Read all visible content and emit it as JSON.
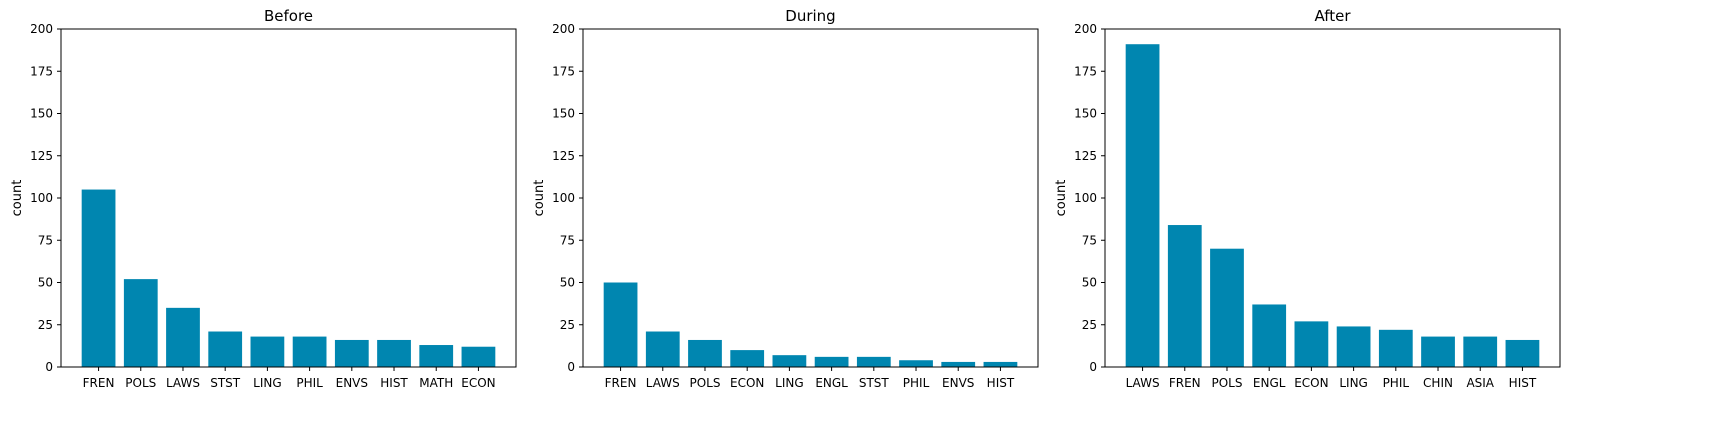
{
  "figure": {
    "bar_color": "#0086b0"
  },
  "chart_data": [
    {
      "type": "bar",
      "title": "Before",
      "xlabel": "",
      "ylabel": "count",
      "ylim": [
        0,
        200
      ],
      "yticks": [
        0,
        25,
        50,
        75,
        100,
        125,
        150,
        175,
        200
      ],
      "categories": [
        "FREN",
        "POLS",
        "LAWS",
        "STST",
        "LING",
        "PHIL",
        "ENVS",
        "HIST",
        "MATH",
        "ECON"
      ],
      "values": [
        105,
        52,
        35,
        21,
        18,
        18,
        16,
        16,
        13,
        12
      ]
    },
    {
      "type": "bar",
      "title": "During",
      "xlabel": "",
      "ylabel": "count",
      "ylim": [
        0,
        200
      ],
      "yticks": [
        0,
        25,
        50,
        75,
        100,
        125,
        150,
        175,
        200
      ],
      "categories": [
        "FREN",
        "LAWS",
        "POLS",
        "ECON",
        "LING",
        "ENGL",
        "STST",
        "PHIL",
        "ENVS",
        "HIST"
      ],
      "values": [
        50,
        21,
        16,
        10,
        7,
        6,
        6,
        4,
        3,
        3
      ]
    },
    {
      "type": "bar",
      "title": "After",
      "xlabel": "",
      "ylabel": "count",
      "ylim": [
        0,
        200
      ],
      "yticks": [
        0,
        25,
        50,
        75,
        100,
        125,
        150,
        175,
        200
      ],
      "categories": [
        "LAWS",
        "FREN",
        "POLS",
        "ENGL",
        "ECON",
        "LING",
        "PHIL",
        "CHIN",
        "ASIA",
        "HIST"
      ],
      "values": [
        191,
        84,
        70,
        37,
        27,
        24,
        22,
        18,
        18,
        16
      ]
    }
  ]
}
